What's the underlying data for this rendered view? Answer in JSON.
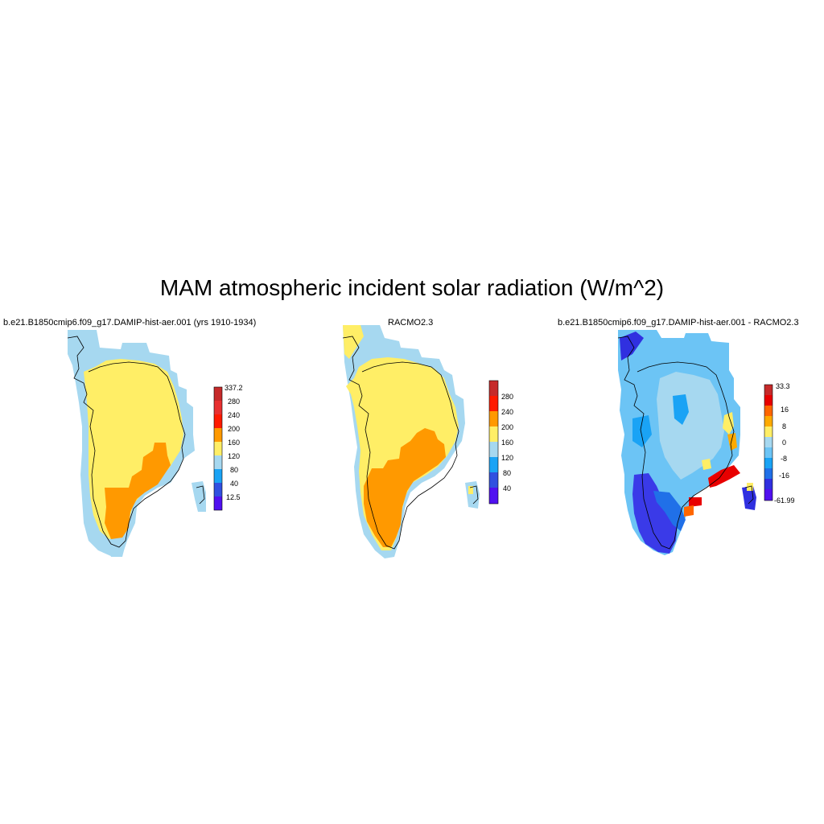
{
  "title": "MAM atmospheric incident solar radiation (W/m^2)",
  "panels": [
    {
      "title": "b.e21.B1850cmip6.f09_g17.DAMIP-hist-aer.001 (yrs 1910-1934)",
      "colorbar": {
        "labels": [
          "337.2",
          "280",
          "240",
          "200",
          "160",
          "120",
          "80",
          "40",
          "12.5"
        ],
        "colors": [
          "#c62a2a",
          "#d93a2a",
          "#ff1a00",
          "#ff9900",
          "#ffee66",
          "#a6d8f0",
          "#1aa3f5",
          "#1e78e8",
          "#3050e0",
          "#5010f0"
        ]
      }
    },
    {
      "title": "RACMO2.3",
      "colorbar": {
        "labels": [
          "280",
          "240",
          "200",
          "160",
          "120",
          "80",
          "40"
        ],
        "colors": [
          "#c62a2a",
          "#ff1a00",
          "#ff9900",
          "#ffee66",
          "#a6d8f0",
          "#1aa3f5",
          "#3050e0",
          "#5010f0"
        ]
      }
    },
    {
      "title": "b.e21.B1850cmip6.f09_g17.DAMIP-hist-aer.001 - RACMO2.3",
      "colorbar": {
        "labels": [
          "33.3",
          "16",
          "8",
          "0",
          "-8",
          "-16",
          "-61.99"
        ],
        "colors": [
          "#c62a2a",
          "#e80000",
          "#ff6600",
          "#ffaa00",
          "#ffee66",
          "#a6d8f0",
          "#6cc4f5",
          "#1aa3f5",
          "#2070e8",
          "#3030e0",
          "#5010f0"
        ]
      }
    }
  ],
  "palette": {
    "ocean_bg": "#ffffff",
    "coast": "#000000",
    "yellow": "#ffee66",
    "lightblue": "#a6d8f0",
    "orange": "#ff9900",
    "blue": "#1aa3f5",
    "darkblue": "#3030e0",
    "red": "#e80000"
  }
}
